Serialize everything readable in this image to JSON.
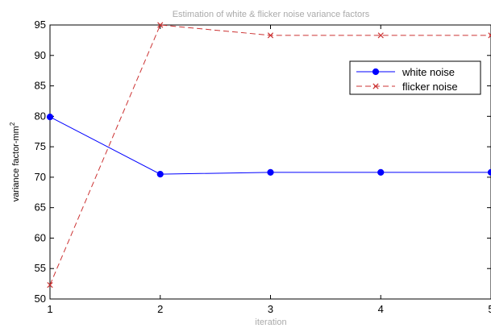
{
  "chart_data": {
    "type": "line",
    "title": "Estimation of white & flicker noise variance factors",
    "xlabel": "iteration",
    "ylabel_prefix": "variance factor-mm",
    "ylabel_superscript": "2",
    "x": [
      1,
      2,
      3,
      4,
      5
    ],
    "xlim": [
      1,
      5
    ],
    "ylim": [
      50,
      95
    ],
    "xticks": [
      "1",
      "2",
      "3",
      "4",
      "5"
    ],
    "yticks": [
      "50",
      "55",
      "60",
      "65",
      "70",
      "75",
      "80",
      "85",
      "90",
      "95"
    ],
    "grid": false,
    "legend_position": "top-right",
    "series": [
      {
        "name": "white noise",
        "values": [
          79.9,
          70.5,
          70.8,
          70.8,
          70.8
        ],
        "color": "#0000ff",
        "line": "solid",
        "marker": "dot"
      },
      {
        "name": "flicker noise",
        "values": [
          52.3,
          95.0,
          93.3,
          93.3,
          93.3
        ],
        "color": "#cc3333",
        "line": "dashed",
        "marker": "x"
      }
    ]
  }
}
